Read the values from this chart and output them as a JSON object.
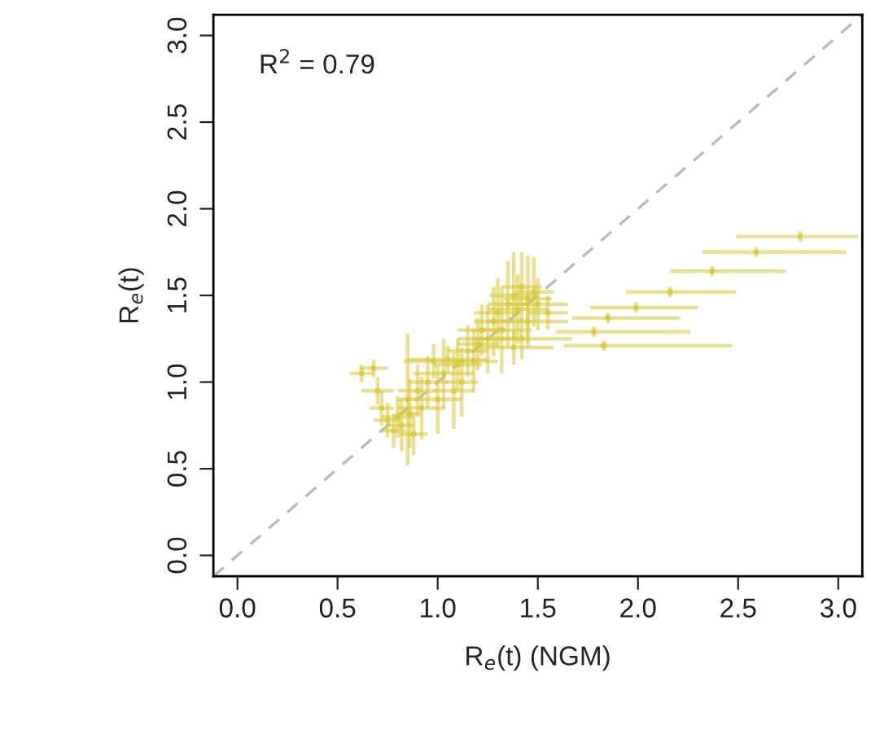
{
  "chart_data": {
    "type": "scatter",
    "xlabel": "R$_{e}$(t) (NGM)",
    "ylabel": "R$_{e}$(t)",
    "annotations": [
      "R$^{2}$ = 0.79"
    ],
    "xlim": [
      -0.12,
      3.12
    ],
    "ylim": [
      -0.12,
      3.12
    ],
    "xticks": [
      {
        "value": 0,
        "label": "0.0"
      },
      {
        "value": 0.5,
        "label": "0.5"
      },
      {
        "value": 1,
        "label": "1.0"
      },
      {
        "value": 1.5,
        "label": "1.5"
      },
      {
        "value": 2,
        "label": "2.0"
      },
      {
        "value": 2.5,
        "label": "2.5"
      },
      {
        "value": 3,
        "label": "3.0"
      }
    ],
    "yticks": [
      {
        "value": 0,
        "label": "0.0"
      },
      {
        "value": 0.5,
        "label": "0.5"
      },
      {
        "value": 1,
        "label": "1.0"
      },
      {
        "value": 1.5,
        "label": "1.5"
      },
      {
        "value": 2,
        "label": "2.0"
      },
      {
        "value": 2.5,
        "label": "2.5"
      },
      {
        "value": 3,
        "label": "3.0"
      }
    ],
    "grid": false,
    "legend": false,
    "series": [
      {
        "type": "line",
        "color": "#bbbbbb",
        "line_style": "dashed",
        "x": [
          -0.12,
          3.12
        ],
        "values": [
          -0.12,
          3.12
        ]
      },
      {
        "color": "#d8c93a",
        "marker": "circle",
        "x": [
          0.62,
          0.68,
          0.7,
          0.72,
          0.75,
          0.78,
          0.8,
          0.82,
          0.85,
          0.86,
          0.88,
          0.9,
          0.92,
          0.95,
          0.98,
          1.0,
          1.03,
          1.05,
          1.08,
          1.1,
          1.12,
          1.15,
          1.18,
          1.2,
          1.22,
          1.25,
          1.28,
          1.3,
          1.32,
          1.35,
          1.38,
          1.4,
          1.42,
          1.45,
          1.48,
          1.5,
          1.45,
          1.42,
          1.38,
          1.55,
          2.81,
          2.59,
          2.37,
          2.16,
          1.99,
          1.85,
          1.78,
          1.83
        ],
        "values": [
          1.05,
          1.08,
          0.95,
          0.85,
          0.78,
          0.72,
          0.8,
          0.75,
          0.9,
          0.82,
          0.7,
          0.95,
          0.85,
          1.0,
          1.12,
          0.9,
          1.05,
          1.13,
          0.95,
          1.1,
          1.0,
          1.18,
          1.12,
          1.22,
          1.3,
          1.25,
          1.35,
          1.4,
          1.3,
          1.45,
          1.5,
          1.42,
          1.55,
          1.48,
          1.52,
          1.45,
          1.35,
          1.25,
          1.2,
          1.4,
          1.84,
          1.75,
          1.64,
          1.52,
          1.43,
          1.37,
          1.29,
          1.21
        ],
        "errors": [
          0.05,
          0.05,
          0.08,
          0.1,
          0.1,
          0.1,
          0.12,
          0.15,
          0.38,
          0.2,
          0.12,
          0.15,
          0.18,
          0.15,
          0.1,
          0.2,
          0.2,
          0.08,
          0.22,
          0.15,
          0.2,
          0.15,
          0.18,
          0.15,
          0.15,
          0.2,
          0.2,
          0.2,
          0.25,
          0.25,
          0.25,
          0.2,
          0.2,
          0.25,
          0.2,
          0.15,
          0.15,
          0.12,
          0.1,
          0.1,
          0.03,
          0.03,
          0.03,
          0.03,
          0.03,
          0.03,
          0.03,
          0.03
        ],
        "xerrors": [
          0.06,
          0.07,
          0.08,
          0.06,
          0.07,
          0.06,
          0.08,
          0.06,
          0.05,
          0.06,
          0.07,
          0.1,
          0.12,
          0.1,
          0.15,
          0.12,
          0.15,
          0.2,
          0.1,
          0.12,
          0.08,
          0.1,
          0.12,
          0.1,
          0.12,
          0.15,
          0.1,
          0.12,
          0.15,
          0.1,
          0.12,
          0.15,
          0.1,
          0.12,
          0.1,
          0.15,
          0.2,
          0.25,
          0.2,
          0.1,
          [
            2.49,
            3.1
          ],
          [
            2.32,
            3.04
          ],
          [
            2.16,
            2.74
          ],
          [
            1.94,
            2.49
          ],
          [
            1.76,
            2.3
          ],
          [
            1.67,
            2.21
          ],
          [
            1.59,
            2.26
          ],
          [
            1.63,
            2.47
          ]
        ]
      }
    ]
  }
}
